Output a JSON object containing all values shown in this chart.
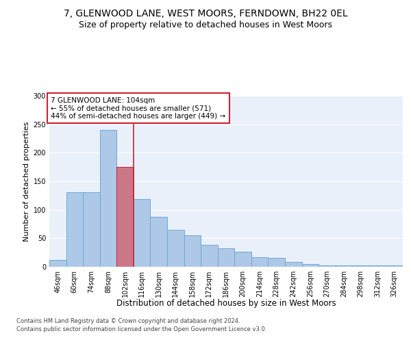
{
  "title": "7, GLENWOOD LANE, WEST MOORS, FERNDOWN, BH22 0EL",
  "subtitle": "Size of property relative to detached houses in West Moors",
  "xlabel": "Distribution of detached houses by size in West Moors",
  "ylabel": "Number of detached properties",
  "categories": [
    "46sqm",
    "60sqm",
    "74sqm",
    "88sqm",
    "102sqm",
    "116sqm",
    "130sqm",
    "144sqm",
    "158sqm",
    "172sqm",
    "186sqm",
    "200sqm",
    "214sqm",
    "228sqm",
    "242sqm",
    "256sqm",
    "270sqm",
    "284sqm",
    "298sqm",
    "312sqm",
    "326sqm"
  ],
  "values": [
    12,
    131,
    131,
    240,
    175,
    119,
    88,
    65,
    55,
    38,
    33,
    27,
    17,
    16,
    8,
    5,
    3,
    2,
    2,
    3,
    2
  ],
  "bar_color": "#aec8e8",
  "bar_edge_color": "#6aaad4",
  "highlight_bar_color": "#cc7788",
  "highlight_bar_edge_color": "#bb2233",
  "vline_color": "#cc2233",
  "vline_index": 4.5,
  "highlight_index": 4,
  "annotation_text": "7 GLENWOOD LANE: 104sqm\n← 55% of detached houses are smaller (571)\n44% of semi-detached houses are larger (449) →",
  "annotation_box_color": "white",
  "annotation_box_edge_color": "#cc2233",
  "ylim": [
    0,
    300
  ],
  "yticks": [
    0,
    50,
    100,
    150,
    200,
    250,
    300
  ],
  "bg_color": "#eaf0fa",
  "footer_line1": "Contains HM Land Registry data © Crown copyright and database right 2024.",
  "footer_line2": "Contains public sector information licensed under the Open Government Licence v3.0.",
  "title_fontsize": 10,
  "subtitle_fontsize": 9,
  "xlabel_fontsize": 8.5,
  "ylabel_fontsize": 8,
  "tick_fontsize": 7,
  "annotation_fontsize": 7.5,
  "footer_fontsize": 6
}
